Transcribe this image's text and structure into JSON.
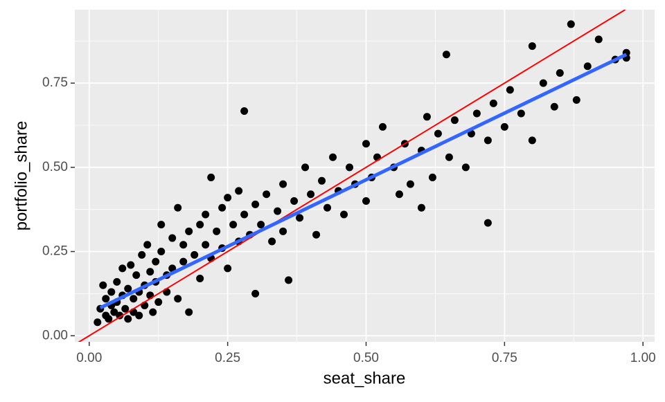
{
  "chart_data": {
    "type": "scatter",
    "x_label": "seat_share",
    "y_label": "portfolio_share",
    "xlim": [
      -0.026,
      1.021
    ],
    "ylim": [
      -0.018,
      0.968
    ],
    "xticks": [
      {
        "value": 0,
        "label": "0.00"
      },
      0.25,
      {
        "value": 0.5,
        "label": "0.50"
      },
      0.75,
      {
        "value": 1,
        "label": "1.00"
      }
    ],
    "yticks": [
      {
        "value": 0,
        "label": "0.00"
      },
      0.25,
      {
        "value": 0.5,
        "label": "0.50"
      },
      0.75
    ],
    "x_minor_grid": [
      0.125,
      0.375,
      0.625,
      0.875
    ],
    "y_minor_grid": [
      0.125,
      0.375,
      0.625,
      0.875
    ],
    "grid": true,
    "point_color": "#000000",
    "x": [
      0.015,
      0.02,
      0.025,
      0.03,
      0.03,
      0.035,
      0.04,
      0.04,
      0.045,
      0.05,
      0.05,
      0.055,
      0.06,
      0.06,
      0.065,
      0.07,
      0.07,
      0.075,
      0.08,
      0.08,
      0.085,
      0.09,
      0.09,
      0.095,
      0.1,
      0.1,
      0.105,
      0.11,
      0.11,
      0.115,
      0.12,
      0.12,
      0.125,
      0.13,
      0.13,
      0.14,
      0.14,
      0.15,
      0.15,
      0.16,
      0.16,
      0.17,
      0.17,
      0.18,
      0.18,
      0.19,
      0.2,
      0.2,
      0.21,
      0.21,
      0.22,
      0.22,
      0.23,
      0.24,
      0.24,
      0.25,
      0.25,
      0.26,
      0.27,
      0.27,
      0.28,
      0.28,
      0.29,
      0.3,
      0.3,
      0.31,
      0.32,
      0.33,
      0.34,
      0.35,
      0.35,
      0.36,
      0.37,
      0.38,
      0.39,
      0.4,
      0.41,
      0.42,
      0.43,
      0.44,
      0.45,
      0.46,
      0.47,
      0.48,
      0.5,
      0.5,
      0.51,
      0.52,
      0.53,
      0.55,
      0.56,
      0.57,
      0.58,
      0.6,
      0.6,
      0.61,
      0.62,
      0.63,
      0.645,
      0.65,
      0.66,
      0.68,
      0.69,
      0.7,
      0.72,
      0.72,
      0.73,
      0.75,
      0.76,
      0.78,
      0.8,
      0.8,
      0.82,
      0.84,
      0.85,
      0.87,
      0.88,
      0.9,
      0.92,
      0.95,
      0.97,
      0.97
    ],
    "y": [
      0.04,
      0.08,
      0.15,
      0.06,
      0.11,
      0.05,
      0.09,
      0.13,
      0.07,
      0.1,
      0.16,
      0.06,
      0.12,
      0.2,
      0.08,
      0.14,
      0.05,
      0.21,
      0.11,
      0.07,
      0.18,
      0.13,
      0.06,
      0.24,
      0.15,
      0.09,
      0.27,
      0.12,
      0.19,
      0.07,
      0.22,
      0.16,
      0.1,
      0.33,
      0.25,
      0.18,
      0.13,
      0.29,
      0.2,
      0.38,
      0.11,
      0.27,
      0.22,
      0.31,
      0.07,
      0.24,
      0.33,
      0.17,
      0.27,
      0.36,
      0.47,
      0.23,
      0.31,
      0.38,
      0.26,
      0.41,
      0.2,
      0.33,
      0.43,
      0.28,
      0.667,
      0.36,
      0.3,
      0.39,
      0.125,
      0.33,
      0.42,
      0.28,
      0.37,
      0.45,
      0.31,
      0.165,
      0.4,
      0.35,
      0.5,
      0.42,
      0.3,
      0.46,
      0.38,
      0.53,
      0.43,
      0.36,
      0.5,
      0.45,
      0.57,
      0.4,
      0.47,
      0.53,
      0.62,
      0.5,
      0.42,
      0.57,
      0.45,
      0.55,
      0.38,
      0.65,
      0.47,
      0.6,
      0.835,
      0.53,
      0.64,
      0.5,
      0.6,
      0.66,
      0.335,
      0.58,
      0.69,
      0.62,
      0.73,
      0.66,
      0.86,
      0.58,
      0.75,
      0.68,
      0.78,
      0.925,
      0.7,
      0.8,
      0.88,
      0.82,
      0.84,
      0.825
    ],
    "reference_line": {
      "x": [
        -0.026,
        0.968
      ],
      "y": [
        -0.026,
        0.968
      ],
      "color": "#ff0000"
    },
    "fit_line": {
      "x": [
        0.02,
        0.97
      ],
      "y": [
        0.083,
        0.835
      ],
      "color": "#3366ff"
    }
  }
}
